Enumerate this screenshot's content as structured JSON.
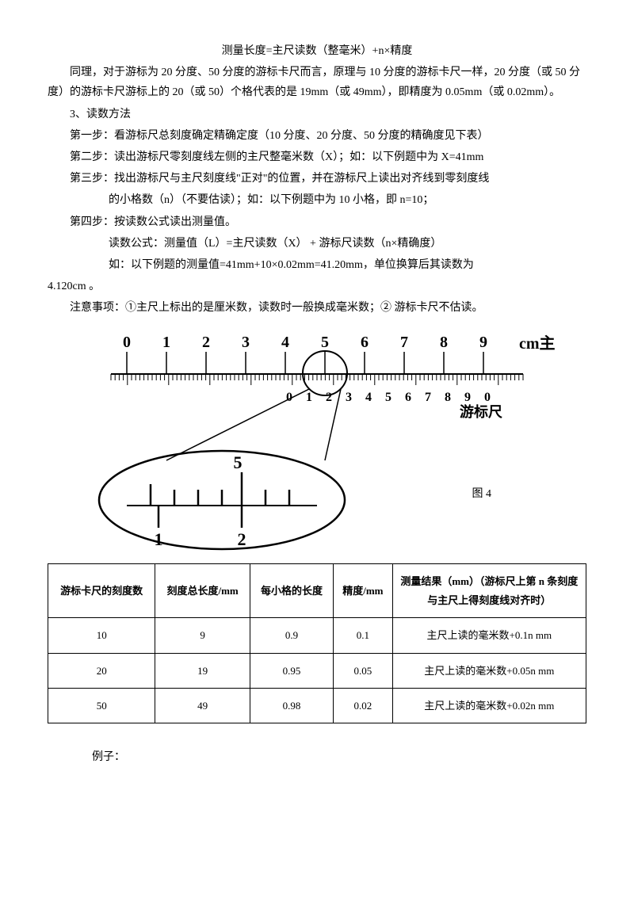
{
  "title_formula": "测量长度=主尺读数（整毫米）+n×精度",
  "para1": "同理，对于游标为 20 分度、50 分度的游标卡尺而言，原理与 10 分度的游标卡尺一样，20 分度（或 50 分度）的游标卡尺游标上的 20（或 50）个格代表的是 19mm（或 49mm），即精度为 0.05mm（或 0.02mm）。",
  "sec3_heading": "3、读数方法",
  "step1": "第一步：看游标尺总刻度确定精确定度（10 分度、20 分度、50 分度的精确度见下表）",
  "step2": "第二步：读出游标尺零刻度线左侧的主尺整毫米数（X）；如：以下例题中为 X=41mm",
  "step3": "第三步：找出游标尺与主尺刻度线\"正对\"的位置，并在游标尺上读出对齐线到零刻度线",
  "step3b": "的小格数（n）（不要估读）；如：以下例题中为 10 小格，即 n=10；",
  "step4": "第四步：按读数公式读出测量值。",
  "formula_line1": "读数公式：测量值（L）=主尺读数（X） + 游标尺读数（n×精确度）",
  "formula_line2": "如：以下例题的测量值=41mm+10×0.02mm=41.20mm，单位换算后其读数为",
  "result_value": "4.120cm 。",
  "notes": "注意事项：①主尺上标出的是厘米数，读数时一般换成毫米数；② 游标卡尺不估读。",
  "figure": {
    "cm_label": "cm主尺",
    "vernier_label": "游标尺",
    "caption": "图 4",
    "main_numbers": [
      "0",
      "1",
      "2",
      "3",
      "4",
      "5",
      "6",
      "7",
      "8",
      "9"
    ],
    "vernier_numbers": [
      "0",
      "1",
      "2",
      "3",
      "4",
      "5",
      "6",
      "7",
      "8",
      "9",
      "0"
    ],
    "zoom_top": "5",
    "zoom_left": "1",
    "zoom_right": "2"
  },
  "table": {
    "headers": [
      "游标卡尺的刻度数",
      "刻度总长度/mm",
      "每小格的长度",
      "精度/mm",
      "测量结果（mm）（游标尺上第 n 条刻度与主尺上得刻度线对齐时）"
    ],
    "rows": [
      [
        "10",
        "9",
        "0.9",
        "0.1",
        "主尺上读的毫米数+0.1n mm"
      ],
      [
        "20",
        "19",
        "0.95",
        "0.05",
        "主尺上读的毫米数+0.05n mm"
      ],
      [
        "50",
        "49",
        "0.98",
        "0.02",
        "主尺上读的毫米数+0.02n mm"
      ]
    ]
  },
  "example_label": "例子："
}
